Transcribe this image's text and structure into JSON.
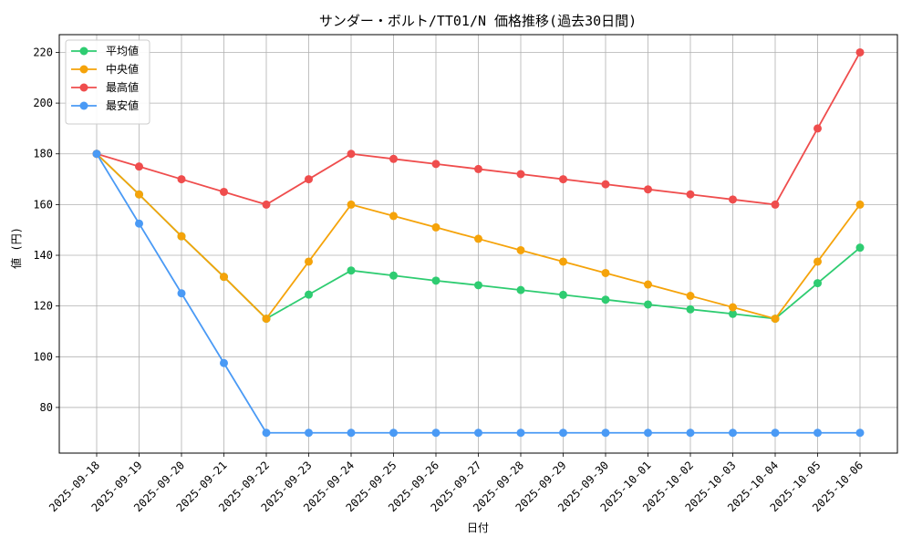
{
  "chart_data": {
    "type": "line",
    "title": "サンダー・ボルト/TT01/N 価格推移(過去30日間)",
    "xlabel": "日付",
    "ylabel": "値 (円)",
    "grid": true,
    "legend_position": "top-left",
    "ylim": [
      62,
      227
    ],
    "yticks": [
      80,
      100,
      120,
      140,
      160,
      180,
      200,
      220
    ],
    "categories": [
      "2025-09-18",
      "2025-09-19",
      "2025-09-20",
      "2025-09-21",
      "2025-09-22",
      "2025-09-23",
      "2025-09-24",
      "2025-09-25",
      "2025-09-26",
      "2025-09-27",
      "2025-09-28",
      "2025-09-29",
      "2025-09-30",
      "2025-10-01",
      "2025-10-02",
      "2025-10-03",
      "2025-10-04",
      "2025-10-05",
      "2025-10-06"
    ],
    "series": [
      {
        "name": "平均値",
        "color": "#2ecc71",
        "values": [
          180,
          164,
          147.5,
          131.5,
          115,
          124.5,
          134,
          132,
          130,
          128.2,
          126.3,
          124.4,
          122.5,
          120.6,
          118.7,
          116.9,
          115,
          129,
          143
        ]
      },
      {
        "name": "中央値",
        "color": "#f5a30a",
        "values": [
          180,
          164,
          147.5,
          131.5,
          115,
          137.5,
          160,
          155.5,
          151,
          146.5,
          142,
          137.5,
          133,
          128.5,
          124,
          119.5,
          115,
          137.5,
          160
        ]
      },
      {
        "name": "最高値",
        "color": "#ef4d4d",
        "values": [
          180,
          175,
          170,
          165,
          160,
          170,
          180,
          178,
          176,
          174,
          172,
          170,
          168,
          166,
          164,
          162,
          160,
          190,
          220
        ]
      },
      {
        "name": "最安値",
        "color": "#4a9af5",
        "values": [
          180,
          152.5,
          125,
          97.5,
          70,
          70,
          70,
          70,
          70,
          70,
          70,
          70,
          70,
          70,
          70,
          70,
          70,
          70,
          70
        ]
      }
    ]
  }
}
